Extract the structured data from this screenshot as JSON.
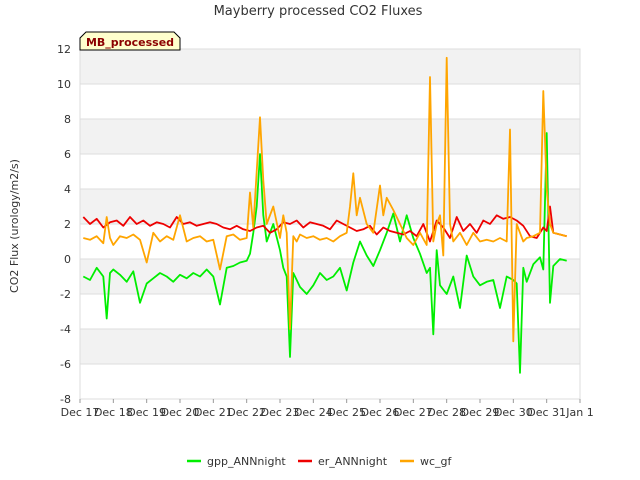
{
  "chart_data": {
    "type": "line",
    "title": "Mayberry processed CO2 Fluxes",
    "ylabel": "CO2 Flux (urology/m2/s)",
    "xlabel": "",
    "tag": "MB_processed",
    "ylim": [
      -8,
      12
    ],
    "yticks": [
      "-8",
      "-6",
      "-4",
      "-2",
      "0",
      "2",
      "4",
      "6",
      "8",
      "10",
      "12"
    ],
    "xlim": [
      0,
      15
    ],
    "xticks": [
      "Dec 17",
      "Dec 18",
      "Dec 19",
      "Dec 20",
      "Dec 21",
      "Dec 22",
      "Dec 23",
      "Dec 24",
      "Dec 25",
      "Dec 26",
      "Dec 27",
      "Dec 28",
      "Dec 29",
      "Dec 30",
      "Dec 31",
      "Jan 1"
    ],
    "grid": true,
    "legend_position": "bottom",
    "series": [
      {
        "name": "gpp_ANNnight",
        "color": "#00ee00",
        "x": [
          0.1,
          0.3,
          0.5,
          0.7,
          0.8,
          0.9,
          1.0,
          1.2,
          1.4,
          1.6,
          1.8,
          2.0,
          2.2,
          2.4,
          2.6,
          2.8,
          3.0,
          3.2,
          3.4,
          3.6,
          3.8,
          4.0,
          4.2,
          4.4,
          4.6,
          4.8,
          5.0,
          5.1,
          5.2,
          5.3,
          5.4,
          5.5,
          5.6,
          5.8,
          6.0,
          6.1,
          6.2,
          6.3,
          6.4,
          6.5,
          6.6,
          6.8,
          7.0,
          7.2,
          7.4,
          7.6,
          7.8,
          8.0,
          8.2,
          8.4,
          8.6,
          8.8,
          9.0,
          9.2,
          9.4,
          9.6,
          9.8,
          10.0,
          10.2,
          10.4,
          10.5,
          10.6,
          10.7,
          10.8,
          11.0,
          11.2,
          11.4,
          11.6,
          11.8,
          12.0,
          12.2,
          12.4,
          12.6,
          12.8,
          13.0,
          13.1,
          13.2,
          13.3,
          13.4,
          13.6,
          13.8,
          13.9,
          14.0,
          14.1,
          14.2,
          14.4,
          14.6
        ],
        "y": [
          -1.0,
          -1.2,
          -0.5,
          -1.0,
          -3.4,
          -0.8,
          -0.6,
          -0.9,
          -1.3,
          -0.7,
          -2.5,
          -1.4,
          -1.1,
          -0.8,
          -1.0,
          -1.3,
          -0.9,
          -1.1,
          -0.8,
          -1.0,
          -0.6,
          -1.0,
          -2.6,
          -0.5,
          -0.4,
          -0.2,
          -0.1,
          0.3,
          1.5,
          3.0,
          6.0,
          2.5,
          1.0,
          2.0,
          0.5,
          -0.5,
          -1.0,
          -5.6,
          -0.8,
          -1.2,
          -1.6,
          -2.0,
          -1.5,
          -0.8,
          -1.2,
          -1.0,
          -0.5,
          -1.8,
          -0.2,
          1.0,
          0.2,
          -0.4,
          0.5,
          1.5,
          2.6,
          1.0,
          2.5,
          1.2,
          0.3,
          -0.8,
          -0.5,
          -4.3,
          0.5,
          -1.5,
          -2.0,
          -1.0,
          -2.8,
          0.2,
          -1.0,
          -1.5,
          -1.3,
          -1.2,
          -2.8,
          -1.0,
          -1.2,
          -1.4,
          -6.5,
          -0.5,
          -1.3,
          -0.3,
          0.1,
          -0.6,
          7.2,
          -2.5,
          -0.4,
          0.0,
          -0.1
        ]
      },
      {
        "name": "er_ANNnight",
        "color": "#ee0000",
        "x": [
          0.1,
          0.3,
          0.5,
          0.7,
          0.9,
          1.1,
          1.3,
          1.5,
          1.7,
          1.9,
          2.1,
          2.3,
          2.5,
          2.7,
          2.9,
          3.1,
          3.3,
          3.5,
          3.7,
          3.9,
          4.1,
          4.3,
          4.5,
          4.7,
          4.9,
          5.1,
          5.3,
          5.5,
          5.7,
          5.9,
          6.1,
          6.3,
          6.5,
          6.7,
          6.9,
          7.1,
          7.3,
          7.5,
          7.7,
          7.9,
          8.1,
          8.3,
          8.5,
          8.7,
          8.9,
          9.1,
          9.3,
          9.5,
          9.7,
          9.9,
          10.1,
          10.3,
          10.5,
          10.7,
          10.9,
          11.1,
          11.3,
          11.5,
          11.7,
          11.9,
          12.1,
          12.3,
          12.5,
          12.7,
          12.9,
          13.1,
          13.3,
          13.5,
          13.7,
          13.9,
          14.0,
          14.1,
          14.2,
          14.4,
          14.6
        ],
        "y": [
          2.4,
          2.0,
          2.3,
          1.8,
          2.1,
          2.2,
          1.9,
          2.4,
          2.0,
          2.2,
          1.9,
          2.1,
          2.0,
          1.8,
          2.4,
          2.0,
          2.1,
          1.9,
          2.0,
          2.1,
          2.0,
          1.8,
          1.7,
          1.9,
          1.7,
          1.6,
          1.8,
          1.9,
          1.5,
          1.7,
          2.1,
          2.0,
          2.2,
          1.8,
          2.1,
          2.0,
          1.9,
          1.7,
          2.2,
          2.0,
          1.8,
          1.6,
          1.7,
          1.9,
          1.4,
          1.8,
          1.6,
          1.5,
          1.4,
          1.6,
          1.3,
          2.0,
          1.0,
          2.2,
          1.8,
          1.2,
          2.4,
          1.6,
          2.0,
          1.5,
          2.2,
          2.0,
          2.5,
          2.3,
          2.4,
          2.2,
          1.9,
          1.3,
          1.2,
          1.8,
          1.6,
          3.0,
          1.5,
          1.4,
          1.3
        ]
      },
      {
        "name": "wc_gf",
        "color": "#ffa500",
        "x": [
          0.1,
          0.3,
          0.5,
          0.7,
          0.8,
          0.9,
          1.0,
          1.2,
          1.4,
          1.6,
          1.8,
          2.0,
          2.2,
          2.4,
          2.6,
          2.8,
          3.0,
          3.2,
          3.4,
          3.6,
          3.8,
          4.0,
          4.2,
          4.4,
          4.6,
          4.8,
          5.0,
          5.1,
          5.2,
          5.3,
          5.4,
          5.5,
          5.6,
          5.8,
          6.0,
          6.1,
          6.2,
          6.3,
          6.4,
          6.5,
          6.6,
          6.8,
          7.0,
          7.2,
          7.4,
          7.6,
          7.8,
          8.0,
          8.1,
          8.2,
          8.3,
          8.4,
          8.6,
          8.8,
          9.0,
          9.1,
          9.2,
          9.4,
          9.6,
          9.8,
          10.0,
          10.2,
          10.4,
          10.5,
          10.6,
          10.7,
          10.8,
          10.9,
          11.0,
          11.1,
          11.2,
          11.4,
          11.6,
          11.8,
          12.0,
          12.2,
          12.4,
          12.6,
          12.8,
          12.9,
          13.0,
          13.1,
          13.2,
          13.3,
          13.4,
          13.6,
          13.8,
          13.9,
          14.0,
          14.1,
          14.2,
          14.4,
          14.6
        ],
        "y": [
          1.2,
          1.1,
          1.3,
          0.9,
          2.4,
          1.2,
          0.8,
          1.3,
          1.2,
          1.4,
          1.1,
          -0.2,
          1.5,
          1.0,
          1.3,
          1.1,
          2.5,
          1.0,
          1.2,
          1.3,
          1.0,
          1.1,
          -0.6,
          1.3,
          1.4,
          1.1,
          1.2,
          3.8,
          1.8,
          5.0,
          8.1,
          4.5,
          2.0,
          3.0,
          1.2,
          2.5,
          1.5,
          -4.0,
          1.3,
          1.0,
          1.4,
          1.2,
          1.3,
          1.1,
          1.2,
          1.0,
          1.3,
          1.5,
          3.0,
          4.9,
          2.5,
          3.5,
          2.0,
          1.5,
          4.2,
          2.5,
          3.5,
          2.8,
          2.0,
          1.2,
          0.8,
          1.5,
          0.8,
          10.4,
          1.0,
          2.0,
          2.5,
          0.2,
          11.5,
          2.0,
          1.0,
          1.5,
          0.8,
          1.5,
          1.0,
          1.1,
          1.0,
          1.2,
          1.0,
          7.4,
          -4.7,
          2.0,
          1.5,
          1.0,
          1.2,
          1.3,
          1.5,
          9.6,
          4.0,
          2.0,
          1.5,
          1.4,
          1.3
        ]
      }
    ]
  }
}
